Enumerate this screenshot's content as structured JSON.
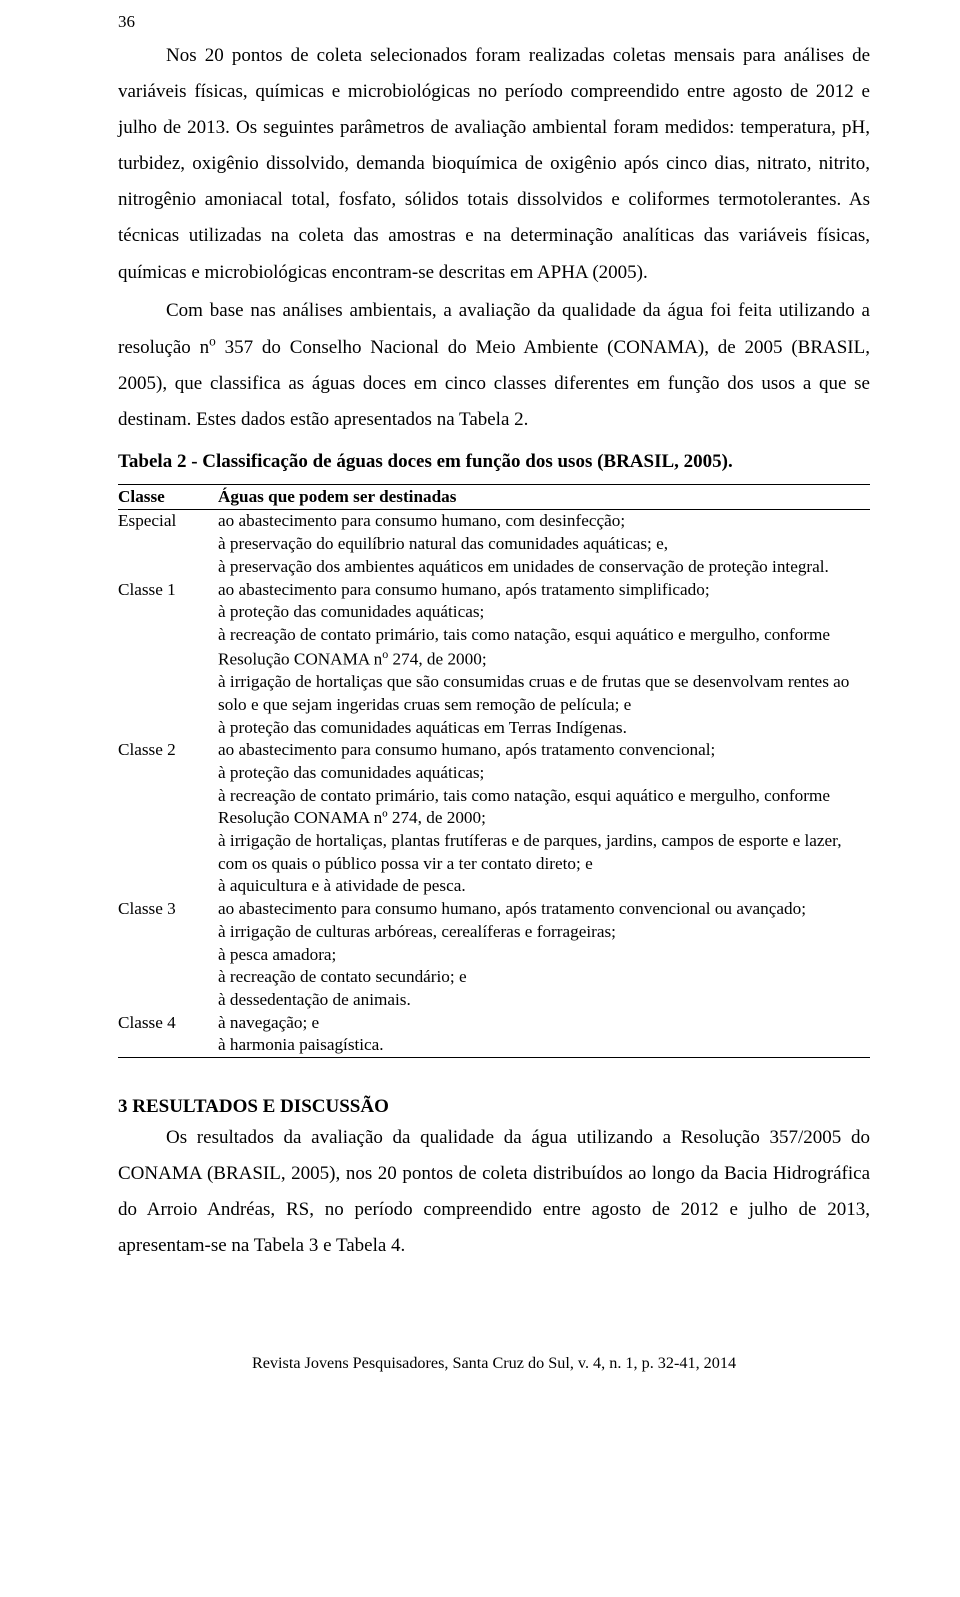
{
  "page_number": "36",
  "para1": "Nos 20 pontos de coleta selecionados foram realizadas coletas mensais para análises de variáveis físicas, químicas e microbiológicas no período compreendido entre agosto de 2012 e julho de 2013. Os seguintes parâmetros de avaliação ambiental foram medidos: temperatura, pH, turbidez, oxigênio dissolvido, demanda bioquímica de oxigênio após cinco dias, nitrato, nitrito, nitrogênio amoniacal total, fosfato, sólidos totais dissolvidos e coliformes termotolerantes. As técnicas utilizadas na coleta das amostras e na determinação analíticas das variáveis físicas, químicas e microbiológicas encontram-se descritas em APHA (2005).",
  "para2_html": "Com base nas análises ambientais, a avaliação da qualidade da água foi feita utilizando a resolução n<sup>o</sup> 357 do Conselho Nacional do Meio Ambiente (CONAMA), de 2005 (BRASIL, 2005), que classifica as águas doces em cinco classes diferentes em função dos usos a que se destinam. Estes dados estão apresentados na Tabela 2.",
  "table_title": "Tabela 2 - Classificação de águas doces em função dos usos (BRASIL, 2005).",
  "table": {
    "header_col1": "Classe",
    "header_col2": "Águas que podem ser destinadas",
    "rows": [
      {
        "class": "Especial",
        "items": [
          "ao abastecimento para consumo humano, com desinfecção;",
          "à preservação do equilíbrio natural das comunidades aquáticas; e,",
          "à preservação dos ambientes aquáticos em unidades de conservação de proteção integral."
        ]
      },
      {
        "class": "Classe 1",
        "items": [
          "ao abastecimento para consumo humano, após tratamento simplificado;",
          "à proteção das comunidades aquáticas;",
          "à recreação de contato primário, tais como natação, esqui aquático e mergulho, conforme Resolução CONAMA n<sup>o</sup> 274, de 2000;",
          "à irrigação de hortaliças que são consumidas cruas e de frutas que se desenvolvam rentes ao solo e que sejam ingeridas cruas sem remoção de película; e",
          "à proteção das comunidades aquáticas em Terras Indígenas."
        ]
      },
      {
        "class": "Classe 2",
        "items": [
          "ao abastecimento para consumo humano, após tratamento convencional;",
          "à proteção das comunidades aquáticas;",
          "à recreação de contato primário, tais como natação, esqui aquático e mergulho, conforme Resolução CONAMA nº 274, de 2000;",
          "à irrigação de hortaliças, plantas frutíferas e de parques, jardins, campos de esporte e lazer, com os quais o público possa vir a ter contato direto; e",
          "à aquicultura e à atividade de pesca."
        ]
      },
      {
        "class": "Classe 3",
        "items": [
          "ao abastecimento para consumo humano, após tratamento convencional ou avançado;",
          "à irrigação de culturas arbóreas, cerealíferas e forrageiras;",
          "à pesca amadora;",
          "à recreação de contato secundário; e",
          "à dessedentação de animais."
        ]
      },
      {
        "class": "Classe 4",
        "items": [
          "à navegação; e",
          "à harmonia paisagística."
        ]
      }
    ]
  },
  "section_head": "3 RESULTADOS E DISCUSSÃO",
  "para3": "Os resultados da avaliação da qualidade da água utilizando a Resolução 357/2005 do CONAMA (BRASIL, 2005), nos 20 pontos de coleta distribuídos ao longo da Bacia Hidrográfica do Arroio Andréas, RS, no período compreendido entre agosto de 2012 e julho de 2013, apresentam-se na Tabela 3 e Tabela 4.",
  "footer": "Revista Jovens Pesquisadores, Santa Cruz do Sul, v. 4, n. 1, p. 32-41, 2014"
}
